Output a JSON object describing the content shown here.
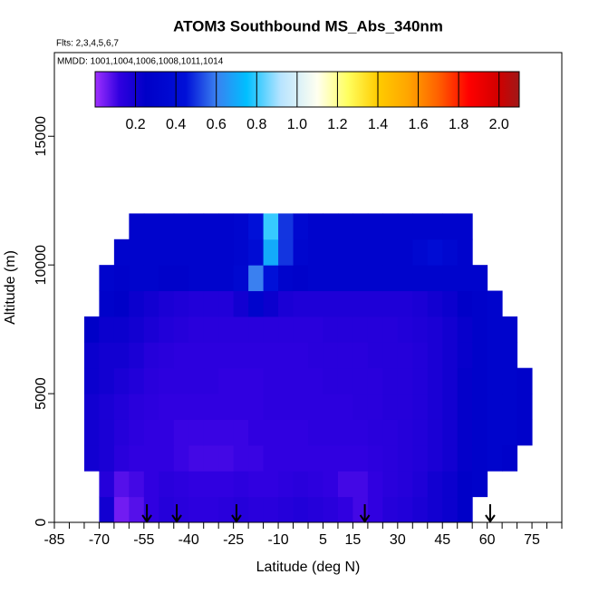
{
  "chart_data": {
    "type": "heatmap",
    "title": "ATOM3 Southbound MS_Abs_340nm",
    "subtitle": "Flts: 2,3,4,5,6,7",
    "annotation": "MMDD: 1001,1004,1006,1008,1011,1014",
    "xlabel": "Latitude (deg N)",
    "ylabel": "Altitude (m)",
    "xlim": [
      -85,
      85
    ],
    "ylim": [
      0,
      18250
    ],
    "xticks": [
      -85,
      -70,
      -55,
      -40,
      -25,
      -10,
      5,
      15,
      30,
      45,
      60,
      75
    ],
    "xminorticks": [
      -80,
      -75,
      -65,
      -60,
      -50,
      -45,
      -35,
      -30,
      -20,
      -15,
      -5,
      0,
      10,
      20,
      25,
      35,
      40,
      50,
      55,
      65,
      70,
      80,
      85
    ],
    "yticks": [
      0,
      5000,
      10000,
      15000
    ],
    "xbins": [
      -75,
      -70,
      -65,
      -60,
      -55,
      -50,
      -45,
      -40,
      -35,
      -30,
      -25,
      -20,
      -15,
      -10,
      -5,
      0,
      5,
      10,
      15,
      20,
      25,
      30,
      35,
      40,
      45,
      50,
      55,
      60,
      65,
      70,
      75
    ],
    "ybins": [
      0,
      1000,
      2000,
      3000,
      4000,
      5000,
      6000,
      7000,
      8000,
      9000,
      10000,
      11000,
      12000
    ],
    "values": [
      [
        null,
        0.2,
        0.05,
        0.08,
        0.12,
        0.15,
        0.14,
        0.13,
        0.13,
        0.14,
        0.15,
        0.14,
        0.14,
        0.15,
        0.16,
        0.15,
        0.14,
        0.12,
        0.1,
        0.12,
        0.15,
        0.16,
        0.18,
        0.2,
        0.22,
        0.25,
        null,
        null,
        null,
        null
      ],
      [
        null,
        0.15,
        0.08,
        0.1,
        0.12,
        0.14,
        0.13,
        0.12,
        0.12,
        0.12,
        0.13,
        0.12,
        0.12,
        0.13,
        0.14,
        0.13,
        0.12,
        0.1,
        0.1,
        0.12,
        0.14,
        0.15,
        0.17,
        0.2,
        0.22,
        0.25,
        0.28,
        null,
        null,
        null
      ],
      [
        0.2,
        0.18,
        0.14,
        0.12,
        0.12,
        0.12,
        0.11,
        0.1,
        0.1,
        0.1,
        0.11,
        0.11,
        0.12,
        0.12,
        0.12,
        0.12,
        0.12,
        0.12,
        0.12,
        0.13,
        0.14,
        0.15,
        0.16,
        0.18,
        0.2,
        0.24,
        0.28,
        0.3,
        0.28,
        null
      ],
      [
        0.2,
        0.18,
        0.15,
        0.13,
        0.12,
        0.12,
        0.11,
        0.11,
        0.11,
        0.11,
        0.11,
        0.12,
        0.12,
        0.12,
        0.12,
        0.13,
        0.13,
        0.13,
        0.13,
        0.14,
        0.14,
        0.15,
        0.16,
        0.18,
        0.2,
        0.24,
        0.28,
        0.3,
        0.3,
        0.28
      ],
      [
        0.2,
        0.18,
        0.16,
        0.14,
        0.13,
        0.12,
        0.12,
        0.12,
        0.12,
        0.12,
        0.12,
        0.12,
        0.13,
        0.13,
        0.13,
        0.13,
        0.13,
        0.13,
        0.14,
        0.14,
        0.15,
        0.15,
        0.16,
        0.18,
        0.2,
        0.24,
        0.28,
        0.3,
        0.3,
        0.28
      ],
      [
        0.22,
        0.2,
        0.18,
        0.16,
        0.14,
        0.13,
        0.13,
        0.13,
        0.13,
        0.12,
        0.12,
        0.12,
        0.13,
        0.13,
        0.13,
        0.13,
        0.14,
        0.14,
        0.14,
        0.14,
        0.15,
        0.15,
        0.16,
        0.18,
        0.2,
        0.24,
        0.27,
        0.3,
        0.3,
        0.28
      ],
      [
        0.22,
        0.2,
        0.2,
        0.18,
        0.15,
        0.14,
        0.13,
        0.13,
        0.13,
        0.13,
        0.13,
        0.13,
        0.13,
        0.13,
        0.13,
        0.14,
        0.14,
        0.14,
        0.14,
        0.15,
        0.15,
        0.15,
        0.16,
        0.18,
        0.2,
        0.23,
        0.27,
        0.3,
        0.3,
        null
      ],
      [
        0.25,
        0.22,
        0.22,
        0.2,
        0.18,
        0.16,
        0.15,
        0.14,
        0.14,
        0.14,
        0.14,
        0.14,
        0.14,
        0.14,
        0.14,
        0.14,
        0.15,
        0.15,
        0.15,
        0.15,
        0.15,
        0.16,
        0.17,
        0.18,
        0.2,
        0.23,
        0.27,
        0.3,
        0.3,
        null
      ],
      [
        null,
        0.28,
        0.25,
        0.22,
        0.2,
        0.18,
        0.17,
        0.16,
        0.16,
        0.16,
        0.2,
        0.3,
        0.22,
        0.18,
        0.17,
        0.17,
        0.17,
        0.17,
        0.17,
        0.17,
        0.17,
        0.17,
        0.18,
        0.2,
        0.22,
        0.25,
        0.28,
        0.3,
        null,
        null
      ],
      [
        null,
        0.3,
        0.28,
        0.3,
        0.3,
        0.28,
        0.28,
        0.3,
        0.3,
        0.3,
        0.35,
        0.6,
        0.45,
        0.3,
        0.28,
        0.3,
        0.3,
        0.3,
        0.3,
        0.3,
        0.3,
        0.3,
        0.3,
        0.3,
        0.3,
        0.3,
        0.3,
        null,
        null,
        null
      ],
      [
        null,
        null,
        0.3,
        0.3,
        0.3,
        0.3,
        0.3,
        0.3,
        0.3,
        0.3,
        0.32,
        0.4,
        0.7,
        0.5,
        0.32,
        0.3,
        0.3,
        0.3,
        0.3,
        0.3,
        0.3,
        0.3,
        0.35,
        0.4,
        0.35,
        0.3,
        null,
        null,
        null,
        null
      ],
      [
        null,
        null,
        null,
        0.3,
        0.3,
        0.3,
        0.3,
        0.3,
        0.3,
        0.3,
        0.32,
        0.45,
        0.8,
        0.5,
        0.35,
        0.3,
        0.3,
        0.3,
        0.3,
        0.3,
        0.3,
        0.3,
        0.3,
        0.3,
        0.3,
        0.3,
        null,
        null,
        null,
        null
      ]
    ],
    "colorlim": [
      0,
      2.1
    ],
    "colorticks": [
      0.2,
      0.4,
      0.6,
      0.8,
      {
        "value": 1,
        "label": "1.0"
      },
      1.2,
      1.4,
      1.6,
      1.8,
      {
        "value": 2,
        "label": "2.0"
      }
    ],
    "colorscale": [
      [
        0,
        "#a030ff"
      ],
      [
        0.12,
        "#3000e0"
      ],
      [
        0.25,
        "#0000c8"
      ],
      [
        0.45,
        "#0010d8"
      ],
      [
        0.6,
        "#3a80f0"
      ],
      [
        0.75,
        "#00bfff"
      ],
      [
        0.92,
        "#b8e4ff"
      ],
      [
        1.1,
        "#fffff0"
      ],
      [
        1.25,
        "#ffff60"
      ],
      [
        1.4,
        "#ffcc00"
      ],
      [
        1.55,
        "#ffa500"
      ],
      [
        1.7,
        "#ff6000"
      ],
      [
        1.85,
        "#ff0000"
      ],
      [
        2.0,
        "#d00000"
      ],
      [
        2.1,
        "#a01818"
      ]
    ],
    "arrows_x": [
      -54,
      -44,
      -24,
      19,
      61
    ]
  }
}
